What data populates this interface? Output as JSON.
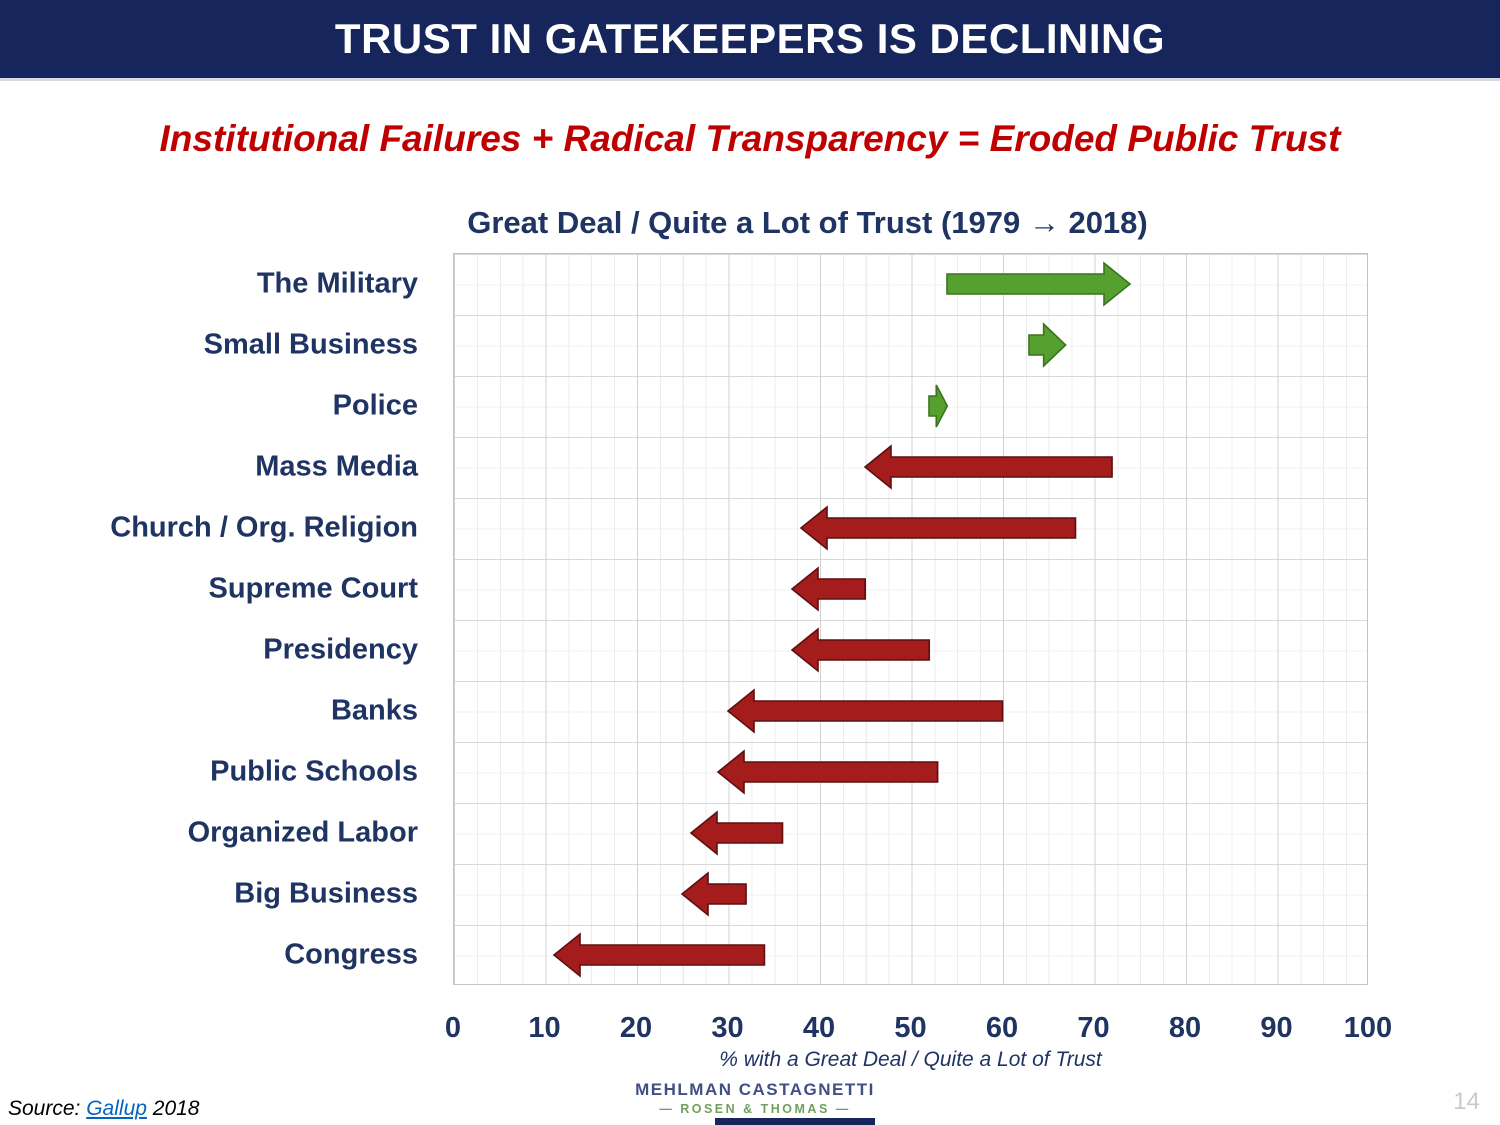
{
  "header": {
    "title": "TRUST IN GATEKEEPERS IS DECLINING"
  },
  "subtitle": "Institutional Failures + Radical Transparency = Eroded Public Trust",
  "chart_data": {
    "type": "arrow-range",
    "title": "Great Deal / Quite a Lot of Trust (1979 → 2018)",
    "xlabel": "% with a Great Deal / Quite a Lot of Trust",
    "xlim": [
      0,
      100
    ],
    "x_ticks": [
      0,
      10,
      20,
      30,
      40,
      50,
      60,
      70,
      80,
      90,
      100
    ],
    "grid": "on",
    "series_note": "arrow from 1979 value to 2018 value; green = increase, red = decrease",
    "rows": [
      {
        "label": "The Military",
        "from": 54,
        "to": 74,
        "direction": "up"
      },
      {
        "label": "Small Business",
        "from": 63,
        "to": 67,
        "direction": "up"
      },
      {
        "label": "Police",
        "from": 52,
        "to": 54,
        "direction": "up"
      },
      {
        "label": "Mass Media",
        "from": 72,
        "to": 45,
        "direction": "down"
      },
      {
        "label": "Church / Org. Religion",
        "from": 68,
        "to": 38,
        "direction": "down"
      },
      {
        "label": "Supreme Court",
        "from": 45,
        "to": 37,
        "direction": "down"
      },
      {
        "label": "Presidency",
        "from": 52,
        "to": 37,
        "direction": "down"
      },
      {
        "label": "Banks",
        "from": 60,
        "to": 30,
        "direction": "down"
      },
      {
        "label": "Public Schools",
        "from": 53,
        "to": 29,
        "direction": "down"
      },
      {
        "label": "Organized Labor",
        "from": 36,
        "to": 26,
        "direction": "down"
      },
      {
        "label": "Big Business",
        "from": 32,
        "to": 25,
        "direction": "down"
      },
      {
        "label": "Congress",
        "from": 34,
        "to": 11,
        "direction": "down"
      }
    ],
    "colors": {
      "increase_fill": "#55a02f",
      "increase_stroke": "#3a741f",
      "decrease_fill": "#a51c1c",
      "decrease_stroke": "#5c1010"
    }
  },
  "footer": {
    "source_prefix": "Source:",
    "source_link": "Gallup",
    "source_suffix": "2018",
    "logo_line1": "MEHLMAN CASTAGNETTI",
    "logo_line2": "— ROSEN & THOMAS —",
    "page_number": "14"
  }
}
